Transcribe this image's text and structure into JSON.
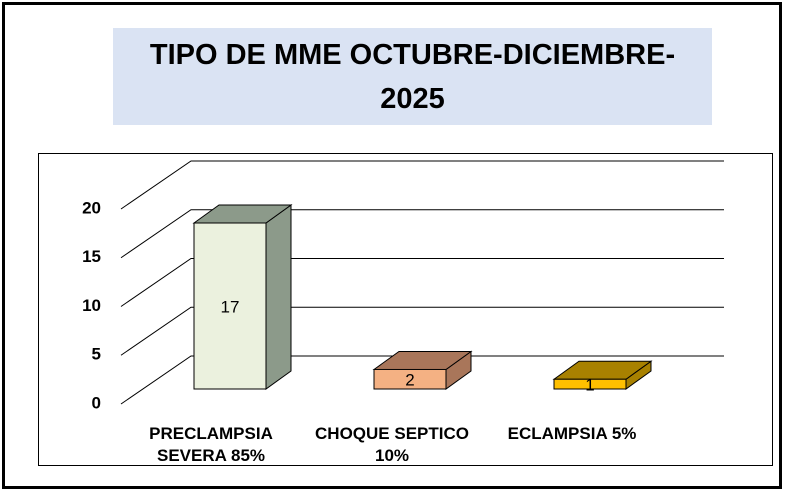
{
  "chart_data": {
    "type": "bar3d",
    "title": "TIPO DE MME OCTUBRE-DICIEMBRE-2025",
    "categories": [
      "PRECLAMPSIA SEVERA 85%",
      "CHOQUE SEPTICO 10%",
      "ECLAMPSIA 5%"
    ],
    "values": [
      17,
      2,
      1
    ],
    "colors": [
      "#ebf1de",
      "#f4b183",
      "#ffc000"
    ],
    "side_colors": [
      "#8c9a8a",
      "#a9765a",
      "#a88100"
    ],
    "ylim": [
      0,
      20
    ],
    "yticks": [
      0,
      5,
      10,
      15,
      20
    ],
    "grid": true
  }
}
